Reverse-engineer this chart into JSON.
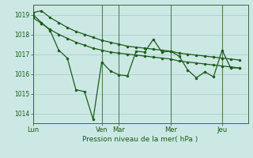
{
  "background_color": "#cce8e4",
  "grid_color": "#aacfcb",
  "line_color": "#1a5c1a",
  "marker_color": "#1a5c1a",
  "title": "Pression niveau de la mer( hPa )",
  "day_labels": [
    "Lun",
    "Ven",
    "Mar",
    "Mer",
    "Jeu"
  ],
  "day_x": [
    0,
    64,
    80,
    128,
    176
  ],
  "xlim": [
    0,
    200
  ],
  "ylim": [
    1013.5,
    1019.5
  ],
  "yticks": [
    1014,
    1015,
    1016,
    1017,
    1018,
    1019
  ],
  "series1_x": [
    0,
    8,
    16,
    24,
    32,
    40,
    48,
    56,
    64,
    72,
    80,
    88,
    96,
    104,
    112,
    120,
    128,
    136,
    144,
    152,
    160,
    168,
    176,
    184,
    192
  ],
  "series1_y": [
    1019.0,
    1018.6,
    1018.2,
    1017.2,
    1016.8,
    1015.2,
    1015.1,
    1013.7,
    1016.6,
    1016.15,
    1015.95,
    1015.9,
    1017.15,
    1017.1,
    1017.75,
    1017.1,
    1017.15,
    1016.9,
    1016.2,
    1015.8,
    1016.1,
    1015.85,
    1017.2,
    1016.3,
    1016.3
  ],
  "series2_x": [
    0,
    8,
    16,
    24,
    32,
    40,
    48,
    56,
    64,
    72,
    80,
    88,
    96,
    104,
    112,
    120,
    128,
    136,
    144,
    152,
    160,
    168,
    176,
    184,
    192
  ],
  "series2_y": [
    1019.1,
    1019.2,
    1018.85,
    1018.6,
    1018.35,
    1018.15,
    1018.0,
    1017.85,
    1017.7,
    1017.6,
    1017.5,
    1017.4,
    1017.35,
    1017.3,
    1017.25,
    1017.2,
    1017.15,
    1017.05,
    1017.0,
    1016.95,
    1016.9,
    1016.85,
    1016.8,
    1016.75,
    1016.7
  ],
  "series3_x": [
    0,
    8,
    16,
    24,
    32,
    40,
    48,
    56,
    64,
    72,
    80,
    88,
    96,
    104,
    112,
    120,
    128,
    136,
    144,
    152,
    160,
    168,
    176,
    184,
    192
  ],
  "series3_y": [
    1018.85,
    1018.55,
    1018.25,
    1018.0,
    1017.8,
    1017.6,
    1017.45,
    1017.3,
    1017.2,
    1017.1,
    1017.05,
    1017.0,
    1016.95,
    1016.9,
    1016.85,
    1016.8,
    1016.75,
    1016.65,
    1016.6,
    1016.55,
    1016.5,
    1016.45,
    1016.4,
    1016.35,
    1016.3
  ]
}
